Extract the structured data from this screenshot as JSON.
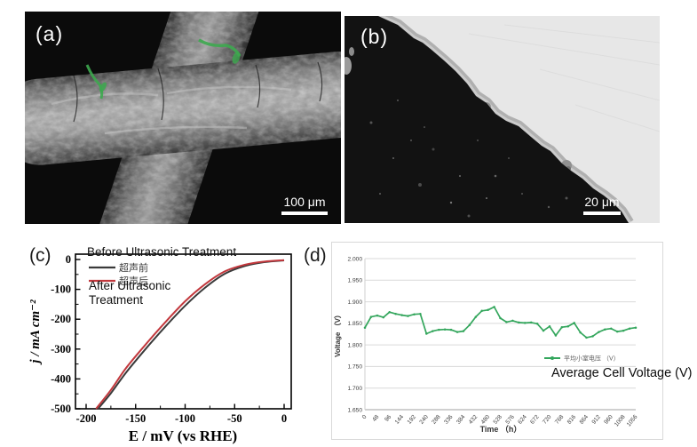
{
  "figure": {
    "panel_a": {
      "label": "(a)",
      "scale_text": "100 μm",
      "description": "SEM image of crossed coated fibers with green deposits"
    },
    "panel_b": {
      "label": "(b)",
      "scale_text": "20 μm",
      "description": "SEM cross-section: dark substrate with gray coating layer against bright resin"
    },
    "panel_c": {
      "label": "(c)",
      "annotation_before": "Before Ultrasonic Treatment",
      "annotation_after_line1": "After Ultrasonic",
      "annotation_after_line2": "Treatment"
    },
    "panel_d": {
      "label": "(d)",
      "annotation": "Average Cell Voltage (V)"
    },
    "colors": {
      "curve_before": "#3a3a3a",
      "curve_after": "#c2383d",
      "voltage_series": "#33a65c",
      "gridline": "#d9d9d9"
    }
  },
  "chart_data": [
    {
      "type": "line",
      "panel": "c",
      "title": "",
      "xlabel": "E / mV (vs RHE)",
      "ylabel": "j / mA cm⁻²",
      "xlim": [
        -211,
        7
      ],
      "ylim": [
        -500,
        18
      ],
      "x_ticks": [
        -200,
        -150,
        -100,
        -50,
        0
      ],
      "x_minor_ticks": [
        -175,
        -125,
        -75,
        -25
      ],
      "y_ticks": [
        0,
        -100,
        -200,
        -300,
        -400,
        -500
      ],
      "y_minor_ticks": [
        -50,
        -150,
        -250,
        -350,
        -450
      ],
      "grid": false,
      "legend_position": "top-left-inside",
      "series": [
        {
          "name": "超声前",
          "name_en": "Before Ultrasonic Treatment",
          "color": "#3a3a3a",
          "x": [
            0,
            -20,
            -40,
            -60,
            -80,
            -100,
            -120,
            -140,
            -160,
            -175,
            -188
          ],
          "y": [
            -3,
            -9,
            -22,
            -48,
            -95,
            -155,
            -225,
            -300,
            -380,
            -448,
            -500
          ]
        },
        {
          "name": "超声后",
          "name_en": "After Ultrasonic Treatment",
          "color": "#c2383d",
          "x": [
            0,
            -20,
            -40,
            -60,
            -80,
            -100,
            -120,
            -140,
            -160,
            -175,
            -190
          ],
          "y": [
            -2,
            -7,
            -18,
            -40,
            -83,
            -140,
            -210,
            -285,
            -365,
            -437,
            -500
          ]
        }
      ]
    },
    {
      "type": "line",
      "panel": "d",
      "title": "",
      "xlabel": "Time （h）",
      "ylabel": "Voltage （V）",
      "ylim": [
        1.65,
        2.0
      ],
      "y_ticks": [
        2.0,
        1.95,
        1.9,
        1.85,
        1.8,
        1.75,
        1.7,
        1.65
      ],
      "x_ticks": [
        0,
        48,
        96,
        144,
        192,
        240,
        288,
        336,
        384,
        432,
        480,
        528,
        576,
        624,
        672,
        720,
        768,
        816,
        864,
        912,
        960,
        1008,
        1056
      ],
      "grid": true,
      "legend_position": "right-middle-inside",
      "x": [
        0,
        24,
        48,
        72,
        96,
        120,
        144,
        168,
        192,
        216,
        240,
        264,
        288,
        312,
        336,
        360,
        384,
        408,
        432,
        456,
        480,
        504,
        528,
        552,
        576,
        600,
        624,
        648,
        672,
        696,
        720,
        744,
        768,
        792,
        816,
        840,
        864,
        888,
        912,
        936,
        960,
        984,
        1008,
        1032,
        1056
      ],
      "series": [
        {
          "name": "平均小室电压 （V）",
          "name_en": "Average Cell Voltage (V)",
          "color": "#33a65c",
          "values": [
            1.84,
            1.865,
            1.868,
            1.864,
            1.876,
            1.872,
            1.869,
            1.867,
            1.871,
            1.872,
            1.826,
            1.832,
            1.835,
            1.836,
            1.835,
            1.83,
            1.832,
            1.846,
            1.865,
            1.879,
            1.881,
            1.888,
            1.862,
            1.853,
            1.856,
            1.852,
            1.851,
            1.852,
            1.849,
            1.833,
            1.843,
            1.822,
            1.841,
            1.843,
            1.851,
            1.829,
            1.817,
            1.82,
            1.83,
            1.836,
            1.838,
            1.831,
            1.833,
            1.838,
            1.84
          ]
        }
      ]
    }
  ]
}
